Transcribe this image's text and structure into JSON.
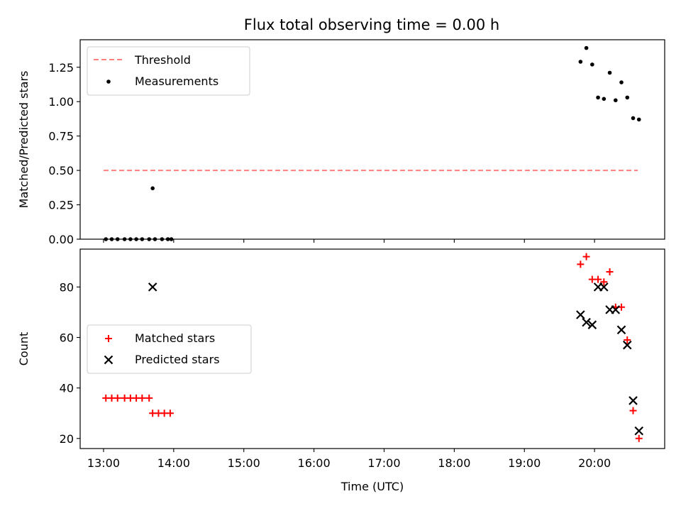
{
  "figure": {
    "title": "Flux total observing time = 0.00 h"
  },
  "chart_data": [
    {
      "type": "scatter",
      "ylabel": "Matched/Predicted stars",
      "xlim": [
        "12:40",
        "21:00"
      ],
      "ylim": [
        0,
        1.45
      ],
      "yticks": [
        {
          "value": 0.0,
          "label": "0.00"
        },
        {
          "value": 0.25,
          "label": "0.25"
        },
        {
          "value": 0.5,
          "label": "0.50"
        },
        {
          "value": 0.75,
          "label": "0.75"
        },
        {
          "value": 1.0,
          "label": "1.00"
        },
        {
          "value": 1.25,
          "label": "1.25"
        }
      ],
      "legend_position": "top-left",
      "grid": false,
      "series": [
        {
          "name": "Threshold",
          "kind": "line",
          "style": "dashed",
          "color": "#ff7f7f",
          "points": [
            {
              "x": "13:00",
              "y": 0.5
            },
            {
              "x": "20:37",
              "y": 0.5
            }
          ]
        },
        {
          "name": "Measurements",
          "kind": "scatter",
          "marker": "dot",
          "color": "#000000",
          "points": [
            {
              "x": "13:02",
              "y": 0.0
            },
            {
              "x": "13:07",
              "y": 0.0
            },
            {
              "x": "13:12",
              "y": 0.0
            },
            {
              "x": "13:18",
              "y": 0.0
            },
            {
              "x": "13:23",
              "y": 0.0
            },
            {
              "x": "13:28",
              "y": 0.0
            },
            {
              "x": "13:33",
              "y": 0.0
            },
            {
              "x": "13:39",
              "y": 0.0
            },
            {
              "x": "13:44",
              "y": 0.0
            },
            {
              "x": "13:50",
              "y": 0.0
            },
            {
              "x": "13:55",
              "y": 0.0
            },
            {
              "x": "13:58",
              "y": 0.0
            },
            {
              "x": "13:42",
              "y": 0.37
            },
            {
              "x": "19:48",
              "y": 1.29
            },
            {
              "x": "19:53",
              "y": 1.39
            },
            {
              "x": "19:58",
              "y": 1.27
            },
            {
              "x": "20:03",
              "y": 1.03
            },
            {
              "x": "20:08",
              "y": 1.02
            },
            {
              "x": "20:13",
              "y": 1.21
            },
            {
              "x": "20:18",
              "y": 1.01
            },
            {
              "x": "20:23",
              "y": 1.14
            },
            {
              "x": "20:28",
              "y": 1.03
            },
            {
              "x": "20:33",
              "y": 0.88
            },
            {
              "x": "20:38",
              "y": 0.87
            }
          ]
        }
      ]
    },
    {
      "type": "scatter",
      "xlabel": "Time (UTC)",
      "ylabel": "Count",
      "xlim": [
        "12:40",
        "21:00"
      ],
      "ylim": [
        16,
        95
      ],
      "xticks": [
        "13:00",
        "14:00",
        "15:00",
        "16:00",
        "17:00",
        "18:00",
        "19:00",
        "20:00"
      ],
      "yticks": [
        {
          "value": 20,
          "label": "20"
        },
        {
          "value": 40,
          "label": "40"
        },
        {
          "value": 60,
          "label": "60"
        },
        {
          "value": 80,
          "label": "80"
        }
      ],
      "legend_position": "center-left",
      "grid": false,
      "series": [
        {
          "name": "Matched stars",
          "kind": "scatter",
          "marker": "plus",
          "color": "#ff0000",
          "points": [
            {
              "x": "13:02",
              "y": 36
            },
            {
              "x": "13:07",
              "y": 36
            },
            {
              "x": "13:12",
              "y": 36
            },
            {
              "x": "13:18",
              "y": 36
            },
            {
              "x": "13:23",
              "y": 36
            },
            {
              "x": "13:28",
              "y": 36
            },
            {
              "x": "13:33",
              "y": 36
            },
            {
              "x": "13:39",
              "y": 36
            },
            {
              "x": "13:42",
              "y": 30
            },
            {
              "x": "13:47",
              "y": 30
            },
            {
              "x": "13:52",
              "y": 30
            },
            {
              "x": "13:57",
              "y": 30
            },
            {
              "x": "19:48",
              "y": 89
            },
            {
              "x": "19:53",
              "y": 92
            },
            {
              "x": "19:58",
              "y": 83
            },
            {
              "x": "20:03",
              "y": 83
            },
            {
              "x": "20:08",
              "y": 82
            },
            {
              "x": "20:13",
              "y": 86
            },
            {
              "x": "20:18",
              "y": 72
            },
            {
              "x": "20:23",
              "y": 72
            },
            {
              "x": "20:28",
              "y": 59
            },
            {
              "x": "20:33",
              "y": 31
            },
            {
              "x": "20:38",
              "y": 20
            }
          ]
        },
        {
          "name": "Predicted stars",
          "kind": "scatter",
          "marker": "x",
          "color": "#000000",
          "points": [
            {
              "x": "13:42",
              "y": 80
            },
            {
              "x": "19:48",
              "y": 69
            },
            {
              "x": "19:53",
              "y": 66
            },
            {
              "x": "19:58",
              "y": 65
            },
            {
              "x": "20:03",
              "y": 80
            },
            {
              "x": "20:08",
              "y": 80
            },
            {
              "x": "20:13",
              "y": 71
            },
            {
              "x": "20:18",
              "y": 71
            },
            {
              "x": "20:23",
              "y": 63
            },
            {
              "x": "20:28",
              "y": 57
            },
            {
              "x": "20:33",
              "y": 35
            },
            {
              "x": "20:38",
              "y": 23
            }
          ]
        }
      ]
    }
  ]
}
